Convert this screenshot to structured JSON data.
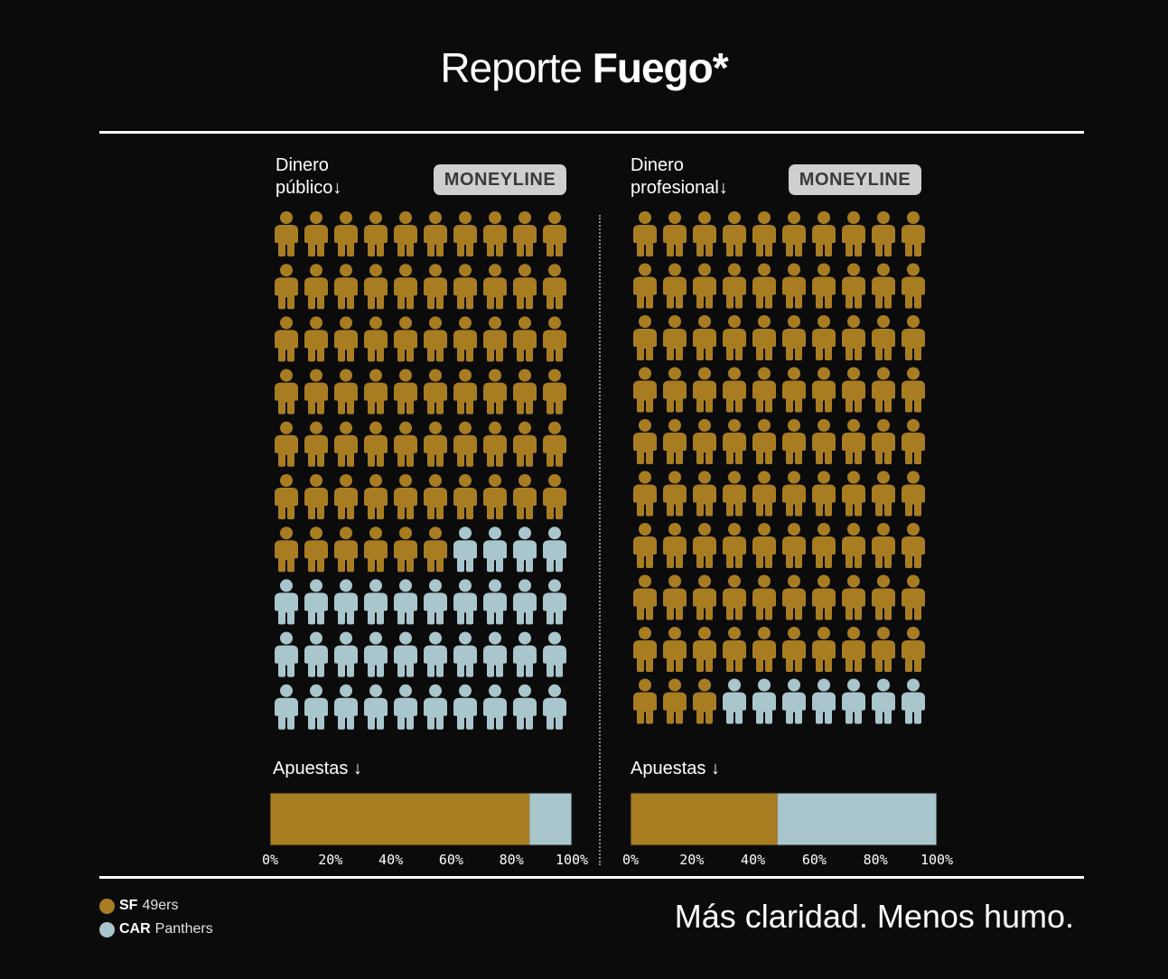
{
  "title": {
    "light": "Reporte",
    "bold": "Fuego*"
  },
  "colors": {
    "sf": "#a87d22",
    "car": "#a9c6cc",
    "background": "#0b0b0b"
  },
  "chart_data": [
    {
      "type": "pictogram",
      "label": "Dinero\npúblico↓",
      "badge": "MONEYLINE",
      "total_icons": 100,
      "columns": 10,
      "series": [
        {
          "name": "SF 49ers",
          "count": 66
        },
        {
          "name": "CAR Panthers",
          "count": 34
        }
      ]
    },
    {
      "type": "pictogram",
      "label": "Dinero\nprofesional↓",
      "badge": "MONEYLINE",
      "total_icons": 100,
      "columns": 10,
      "series": [
        {
          "name": "SF 49ers",
          "count": 93
        },
        {
          "name": "CAR Panthers",
          "count": 7
        }
      ]
    },
    {
      "type": "bar",
      "orientation": "horizontal-stacked",
      "label": "Apuestas ↓",
      "series": [
        {
          "name": "SF 49ers",
          "value": 86
        },
        {
          "name": "CAR Panthers",
          "value": 14
        }
      ],
      "xlim": [
        0,
        100
      ],
      "ticks": [
        "0%",
        "20%",
        "40%",
        "60%",
        "80%",
        "100%"
      ]
    },
    {
      "type": "bar",
      "orientation": "horizontal-stacked",
      "label": "Apuestas ↓",
      "series": [
        {
          "name": "SF 49ers",
          "value": 48
        },
        {
          "name": "CAR Panthers",
          "value": 52
        }
      ],
      "xlim": [
        0,
        100
      ],
      "ticks": [
        "0%",
        "20%",
        "40%",
        "60%",
        "80%",
        "100%"
      ]
    }
  ],
  "legend": [
    {
      "abbr": "SF",
      "name": "49ers",
      "color": "#a87d22"
    },
    {
      "abbr": "CAR",
      "name": "Panthers",
      "color": "#a9c6cc"
    }
  ],
  "tagline": "Más claridad. Menos humo."
}
